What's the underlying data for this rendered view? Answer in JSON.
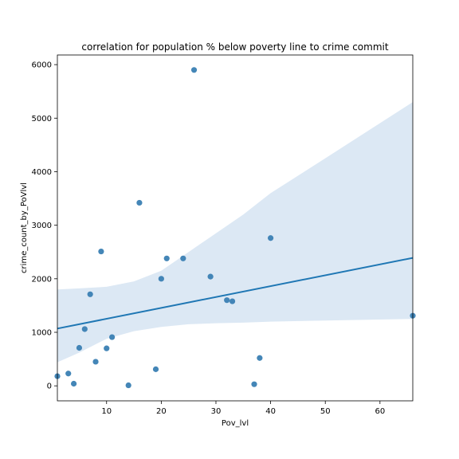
{
  "chart_data": {
    "type": "scatter",
    "title": "correlation for population % below poverty line to crime commit",
    "xlabel": "Pov_lvl",
    "ylabel": "crime_count_by_PoVlvl",
    "xlim": [
      1,
      66
    ],
    "ylim": [
      -280,
      6180
    ],
    "x_ticks": [
      10,
      20,
      30,
      40,
      50,
      60
    ],
    "y_ticks": [
      0,
      1000,
      2000,
      3000,
      4000,
      5000,
      6000
    ],
    "grid": false,
    "point_color": "#3a7fb3",
    "line_color": "#1f77b4",
    "band_color": "#dce8f4",
    "points": [
      {
        "x": 1,
        "y": 180
      },
      {
        "x": 3,
        "y": 230
      },
      {
        "x": 4,
        "y": 40
      },
      {
        "x": 5,
        "y": 710
      },
      {
        "x": 6,
        "y": 1060
      },
      {
        "x": 7,
        "y": 1710
      },
      {
        "x": 8,
        "y": 450
      },
      {
        "x": 9,
        "y": 2510
      },
      {
        "x": 10,
        "y": 700
      },
      {
        "x": 11,
        "y": 910
      },
      {
        "x": 14,
        "y": 10
      },
      {
        "x": 16,
        "y": 3420
      },
      {
        "x": 19,
        "y": 310
      },
      {
        "x": 20,
        "y": 2000
      },
      {
        "x": 21,
        "y": 2380
      },
      {
        "x": 24,
        "y": 2380
      },
      {
        "x": 26,
        "y": 5900
      },
      {
        "x": 29,
        "y": 2040
      },
      {
        "x": 32,
        "y": 1600
      },
      {
        "x": 33,
        "y": 1580
      },
      {
        "x": 37,
        "y": 30
      },
      {
        "x": 38,
        "y": 520
      },
      {
        "x": 40,
        "y": 2760
      },
      {
        "x": 66,
        "y": 1310
      }
    ],
    "regression": {
      "x": [
        1,
        66
      ],
      "y": [
        1070,
        2390
      ]
    },
    "confidence_band": {
      "x": [
        1,
        5,
        10,
        15,
        20,
        25,
        30,
        35,
        40,
        50,
        66
      ],
      "upper": [
        1800,
        1820,
        1850,
        1950,
        2150,
        2500,
        2850,
        3200,
        3600,
        4250,
        5300
      ],
      "lower": [
        440,
        620,
        880,
        1020,
        1100,
        1150,
        1170,
        1180,
        1200,
        1220,
        1250
      ]
    }
  }
}
